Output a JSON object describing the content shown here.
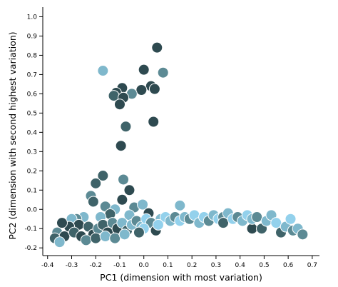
{
  "chart_data": {
    "type": "scatter",
    "title": "",
    "xlabel": "PC1 (dimension with most variation)",
    "ylabel": "PC2 (dimension with second highest variation)",
    "xlim": [
      -0.42,
      0.73
    ],
    "ylim": [
      -0.24,
      1.05
    ],
    "xticks": [
      -0.4,
      -0.3,
      -0.2,
      -0.1,
      0.0,
      0.1,
      0.2,
      0.3,
      0.4,
      0.5,
      0.6,
      0.7
    ],
    "xtick_labels": [
      "-0.4",
      "-0.3",
      "-0.2",
      "-0.1",
      "0.0",
      "0.1",
      "0.2",
      "0.3",
      "0.4",
      "0.5",
      "0.6",
      "0.7"
    ],
    "yticks": [
      -0.2,
      -0.1,
      0.0,
      0.1,
      0.2,
      0.3,
      0.4,
      0.5,
      0.6,
      0.7,
      0.8,
      0.9,
      1.0
    ],
    "ytick_labels": [
      "-0.2",
      "-0.1",
      "0.0",
      "0.1",
      "0.2",
      "0.3",
      "0.4",
      "0.5",
      "0.6",
      "0.7",
      "0.8",
      "0.9",
      "1.0"
    ],
    "grid": false,
    "colors": {
      "darkest": "#2e4a50",
      "dark": "#3f6369",
      "mid": "#5c8a94",
      "light": "#7fb8cc",
      "lightest": "#93d1ec"
    },
    "points": [
      {
        "x": 0.055,
        "y": 0.84,
        "c": "darkest"
      },
      {
        "x": 0.08,
        "y": 0.71,
        "c": "mid"
      },
      {
        "x": 0.0,
        "y": 0.725,
        "c": "darkest"
      },
      {
        "x": -0.17,
        "y": 0.72,
        "c": "light"
      },
      {
        "x": 0.03,
        "y": 0.64,
        "c": "darkest"
      },
      {
        "x": 0.045,
        "y": 0.625,
        "c": "darkest"
      },
      {
        "x": -0.01,
        "y": 0.62,
        "c": "darkest"
      },
      {
        "x": -0.05,
        "y": 0.6,
        "c": "mid"
      },
      {
        "x": -0.09,
        "y": 0.63,
        "c": "darkest"
      },
      {
        "x": -0.115,
        "y": 0.605,
        "c": "darkest"
      },
      {
        "x": -0.125,
        "y": 0.59,
        "c": "dark"
      },
      {
        "x": -0.085,
        "y": 0.58,
        "c": "darkest"
      },
      {
        "x": -0.1,
        "y": 0.545,
        "c": "darkest"
      },
      {
        "x": 0.04,
        "y": 0.455,
        "c": "darkest"
      },
      {
        "x": -0.075,
        "y": 0.43,
        "c": "dark"
      },
      {
        "x": -0.095,
        "y": 0.33,
        "c": "darkest"
      },
      {
        "x": -0.17,
        "y": 0.175,
        "c": "dark"
      },
      {
        "x": -0.085,
        "y": 0.155,
        "c": "mid"
      },
      {
        "x": -0.2,
        "y": 0.135,
        "c": "dark"
      },
      {
        "x": -0.06,
        "y": 0.1,
        "c": "darkest"
      },
      {
        "x": -0.22,
        "y": 0.07,
        "c": "mid"
      },
      {
        "x": -0.09,
        "y": 0.05,
        "c": "darkest"
      },
      {
        "x": -0.21,
        "y": 0.04,
        "c": "dark"
      },
      {
        "x": -0.16,
        "y": 0.015,
        "c": "mid"
      },
      {
        "x": -0.04,
        "y": 0.01,
        "c": "mid"
      },
      {
        "x": -0.12,
        "y": 0.0,
        "c": "light"
      },
      {
        "x": -0.005,
        "y": 0.025,
        "c": "light"
      },
      {
        "x": 0.02,
        "y": -0.02,
        "c": "darkest"
      },
      {
        "x": -0.14,
        "y": -0.025,
        "c": "dark"
      },
      {
        "x": -0.06,
        "y": -0.03,
        "c": "light"
      },
      {
        "x": -0.18,
        "y": -0.04,
        "c": "light"
      },
      {
        "x": -0.25,
        "y": -0.04,
        "c": "light"
      },
      {
        "x": -0.28,
        "y": -0.05,
        "c": "mid"
      },
      {
        "x": -0.3,
        "y": -0.05,
        "c": "light"
      },
      {
        "x": -0.27,
        "y": -0.08,
        "c": "darkest"
      },
      {
        "x": -0.31,
        "y": -0.09,
        "c": "darkest"
      },
      {
        "x": -0.34,
        "y": -0.07,
        "c": "darkest"
      },
      {
        "x": -0.36,
        "y": -0.12,
        "c": "mid"
      },
      {
        "x": -0.33,
        "y": -0.14,
        "c": "darkest"
      },
      {
        "x": -0.37,
        "y": -0.15,
        "c": "dark"
      },
      {
        "x": -0.35,
        "y": -0.17,
        "c": "light"
      },
      {
        "x": -0.29,
        "y": -0.12,
        "c": "dark"
      },
      {
        "x": -0.26,
        "y": -0.14,
        "c": "darkest"
      },
      {
        "x": -0.23,
        "y": -0.09,
        "c": "dark"
      },
      {
        "x": -0.21,
        "y": -0.13,
        "c": "darkest"
      },
      {
        "x": -0.19,
        "y": -0.1,
        "c": "mid"
      },
      {
        "x": -0.17,
        "y": -0.08,
        "c": "dark"
      },
      {
        "x": -0.15,
        "y": -0.12,
        "c": "darkest"
      },
      {
        "x": -0.13,
        "y": -0.07,
        "c": "mid"
      },
      {
        "x": -0.11,
        "y": -0.1,
        "c": "darkest"
      },
      {
        "x": -0.09,
        "y": -0.07,
        "c": "light"
      },
      {
        "x": -0.07,
        "y": -0.11,
        "c": "dark"
      },
      {
        "x": -0.05,
        "y": -0.08,
        "c": "light"
      },
      {
        "x": -0.03,
        "y": -0.06,
        "c": "mid"
      },
      {
        "x": -0.01,
        "y": -0.09,
        "c": "light"
      },
      {
        "x": 0.01,
        "y": -0.05,
        "c": "lightest"
      },
      {
        "x": 0.03,
        "y": -0.07,
        "c": "mid"
      },
      {
        "x": 0.05,
        "y": -0.11,
        "c": "darkest"
      },
      {
        "x": 0.07,
        "y": -0.05,
        "c": "light"
      },
      {
        "x": 0.09,
        "y": -0.04,
        "c": "lightest"
      },
      {
        "x": 0.11,
        "y": -0.06,
        "c": "light"
      },
      {
        "x": 0.13,
        "y": -0.04,
        "c": "mid"
      },
      {
        "x": 0.15,
        "y": -0.06,
        "c": "lightest"
      },
      {
        "x": 0.15,
        "y": 0.02,
        "c": "light"
      },
      {
        "x": 0.17,
        "y": -0.04,
        "c": "light"
      },
      {
        "x": 0.19,
        "y": -0.05,
        "c": "mid"
      },
      {
        "x": 0.21,
        "y": -0.03,
        "c": "lightest"
      },
      {
        "x": 0.23,
        "y": -0.07,
        "c": "light"
      },
      {
        "x": 0.25,
        "y": -0.04,
        "c": "lightest"
      },
      {
        "x": 0.27,
        "y": -0.06,
        "c": "mid"
      },
      {
        "x": 0.29,
        "y": -0.03,
        "c": "light"
      },
      {
        "x": 0.31,
        "y": -0.05,
        "c": "lightest"
      },
      {
        "x": 0.33,
        "y": -0.04,
        "c": "mid"
      },
      {
        "x": 0.33,
        "y": -0.07,
        "c": "dark"
      },
      {
        "x": 0.35,
        "y": -0.02,
        "c": "light"
      },
      {
        "x": 0.37,
        "y": -0.05,
        "c": "lightest"
      },
      {
        "x": 0.39,
        "y": -0.04,
        "c": "mid"
      },
      {
        "x": 0.41,
        "y": -0.06,
        "c": "light"
      },
      {
        "x": 0.43,
        "y": -0.03,
        "c": "lightest"
      },
      {
        "x": 0.45,
        "y": -0.1,
        "c": "darkest"
      },
      {
        "x": 0.45,
        "y": -0.05,
        "c": "light"
      },
      {
        "x": 0.47,
        "y": -0.04,
        "c": "mid"
      },
      {
        "x": 0.49,
        "y": -0.1,
        "c": "dark"
      },
      {
        "x": 0.51,
        "y": -0.06,
        "c": "light"
      },
      {
        "x": 0.53,
        "y": -0.03,
        "c": "light"
      },
      {
        "x": 0.55,
        "y": -0.07,
        "c": "lightest"
      },
      {
        "x": 0.57,
        "y": -0.12,
        "c": "dark"
      },
      {
        "x": 0.59,
        "y": -0.09,
        "c": "light"
      },
      {
        "x": 0.61,
        "y": -0.05,
        "c": "lightest"
      },
      {
        "x": 0.62,
        "y": -0.11,
        "c": "mid"
      },
      {
        "x": 0.64,
        "y": -0.1,
        "c": "light"
      },
      {
        "x": 0.66,
        "y": -0.13,
        "c": "mid"
      },
      {
        "x": 0.0,
        "y": -0.1,
        "c": "lightest"
      },
      {
        "x": -0.02,
        "y": -0.12,
        "c": "dark"
      },
      {
        "x": 0.06,
        "y": -0.08,
        "c": "lightest"
      },
      {
        "x": -0.24,
        "y": -0.16,
        "c": "mid"
      },
      {
        "x": -0.2,
        "y": -0.15,
        "c": "dark"
      },
      {
        "x": -0.16,
        "y": -0.14,
        "c": "light"
      },
      {
        "x": -0.12,
        "y": -0.15,
        "c": "mid"
      },
      {
        "x": -0.08,
        "y": -0.13,
        "c": "light"
      }
    ]
  }
}
